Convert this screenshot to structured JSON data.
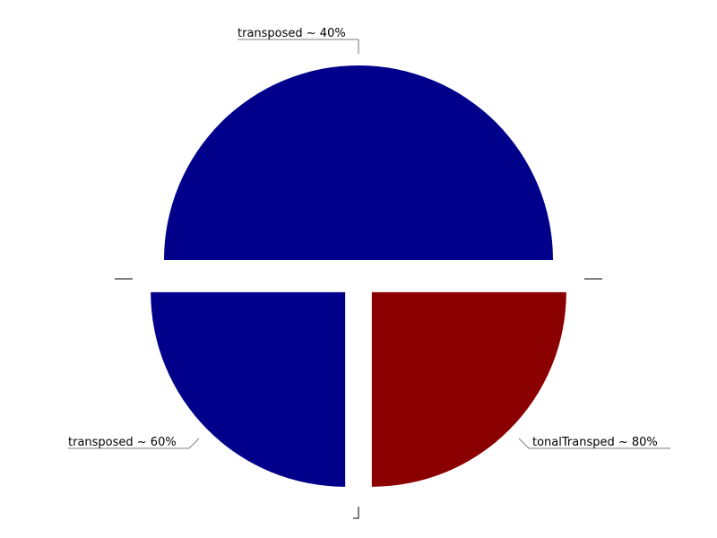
{
  "chart_data": {
    "type": "pie",
    "slices": [
      {
        "label": "transposed ~ 40%",
        "value": 50,
        "color": "#00008b"
      },
      {
        "label": "tonalTransped ~ 80%",
        "value": 25,
        "color": "#8b0000"
      },
      {
        "label": "transposed ~ 60%",
        "value": 25,
        "color": "#00008b"
      }
    ],
    "exploded": true,
    "legend": "none",
    "title": ""
  }
}
